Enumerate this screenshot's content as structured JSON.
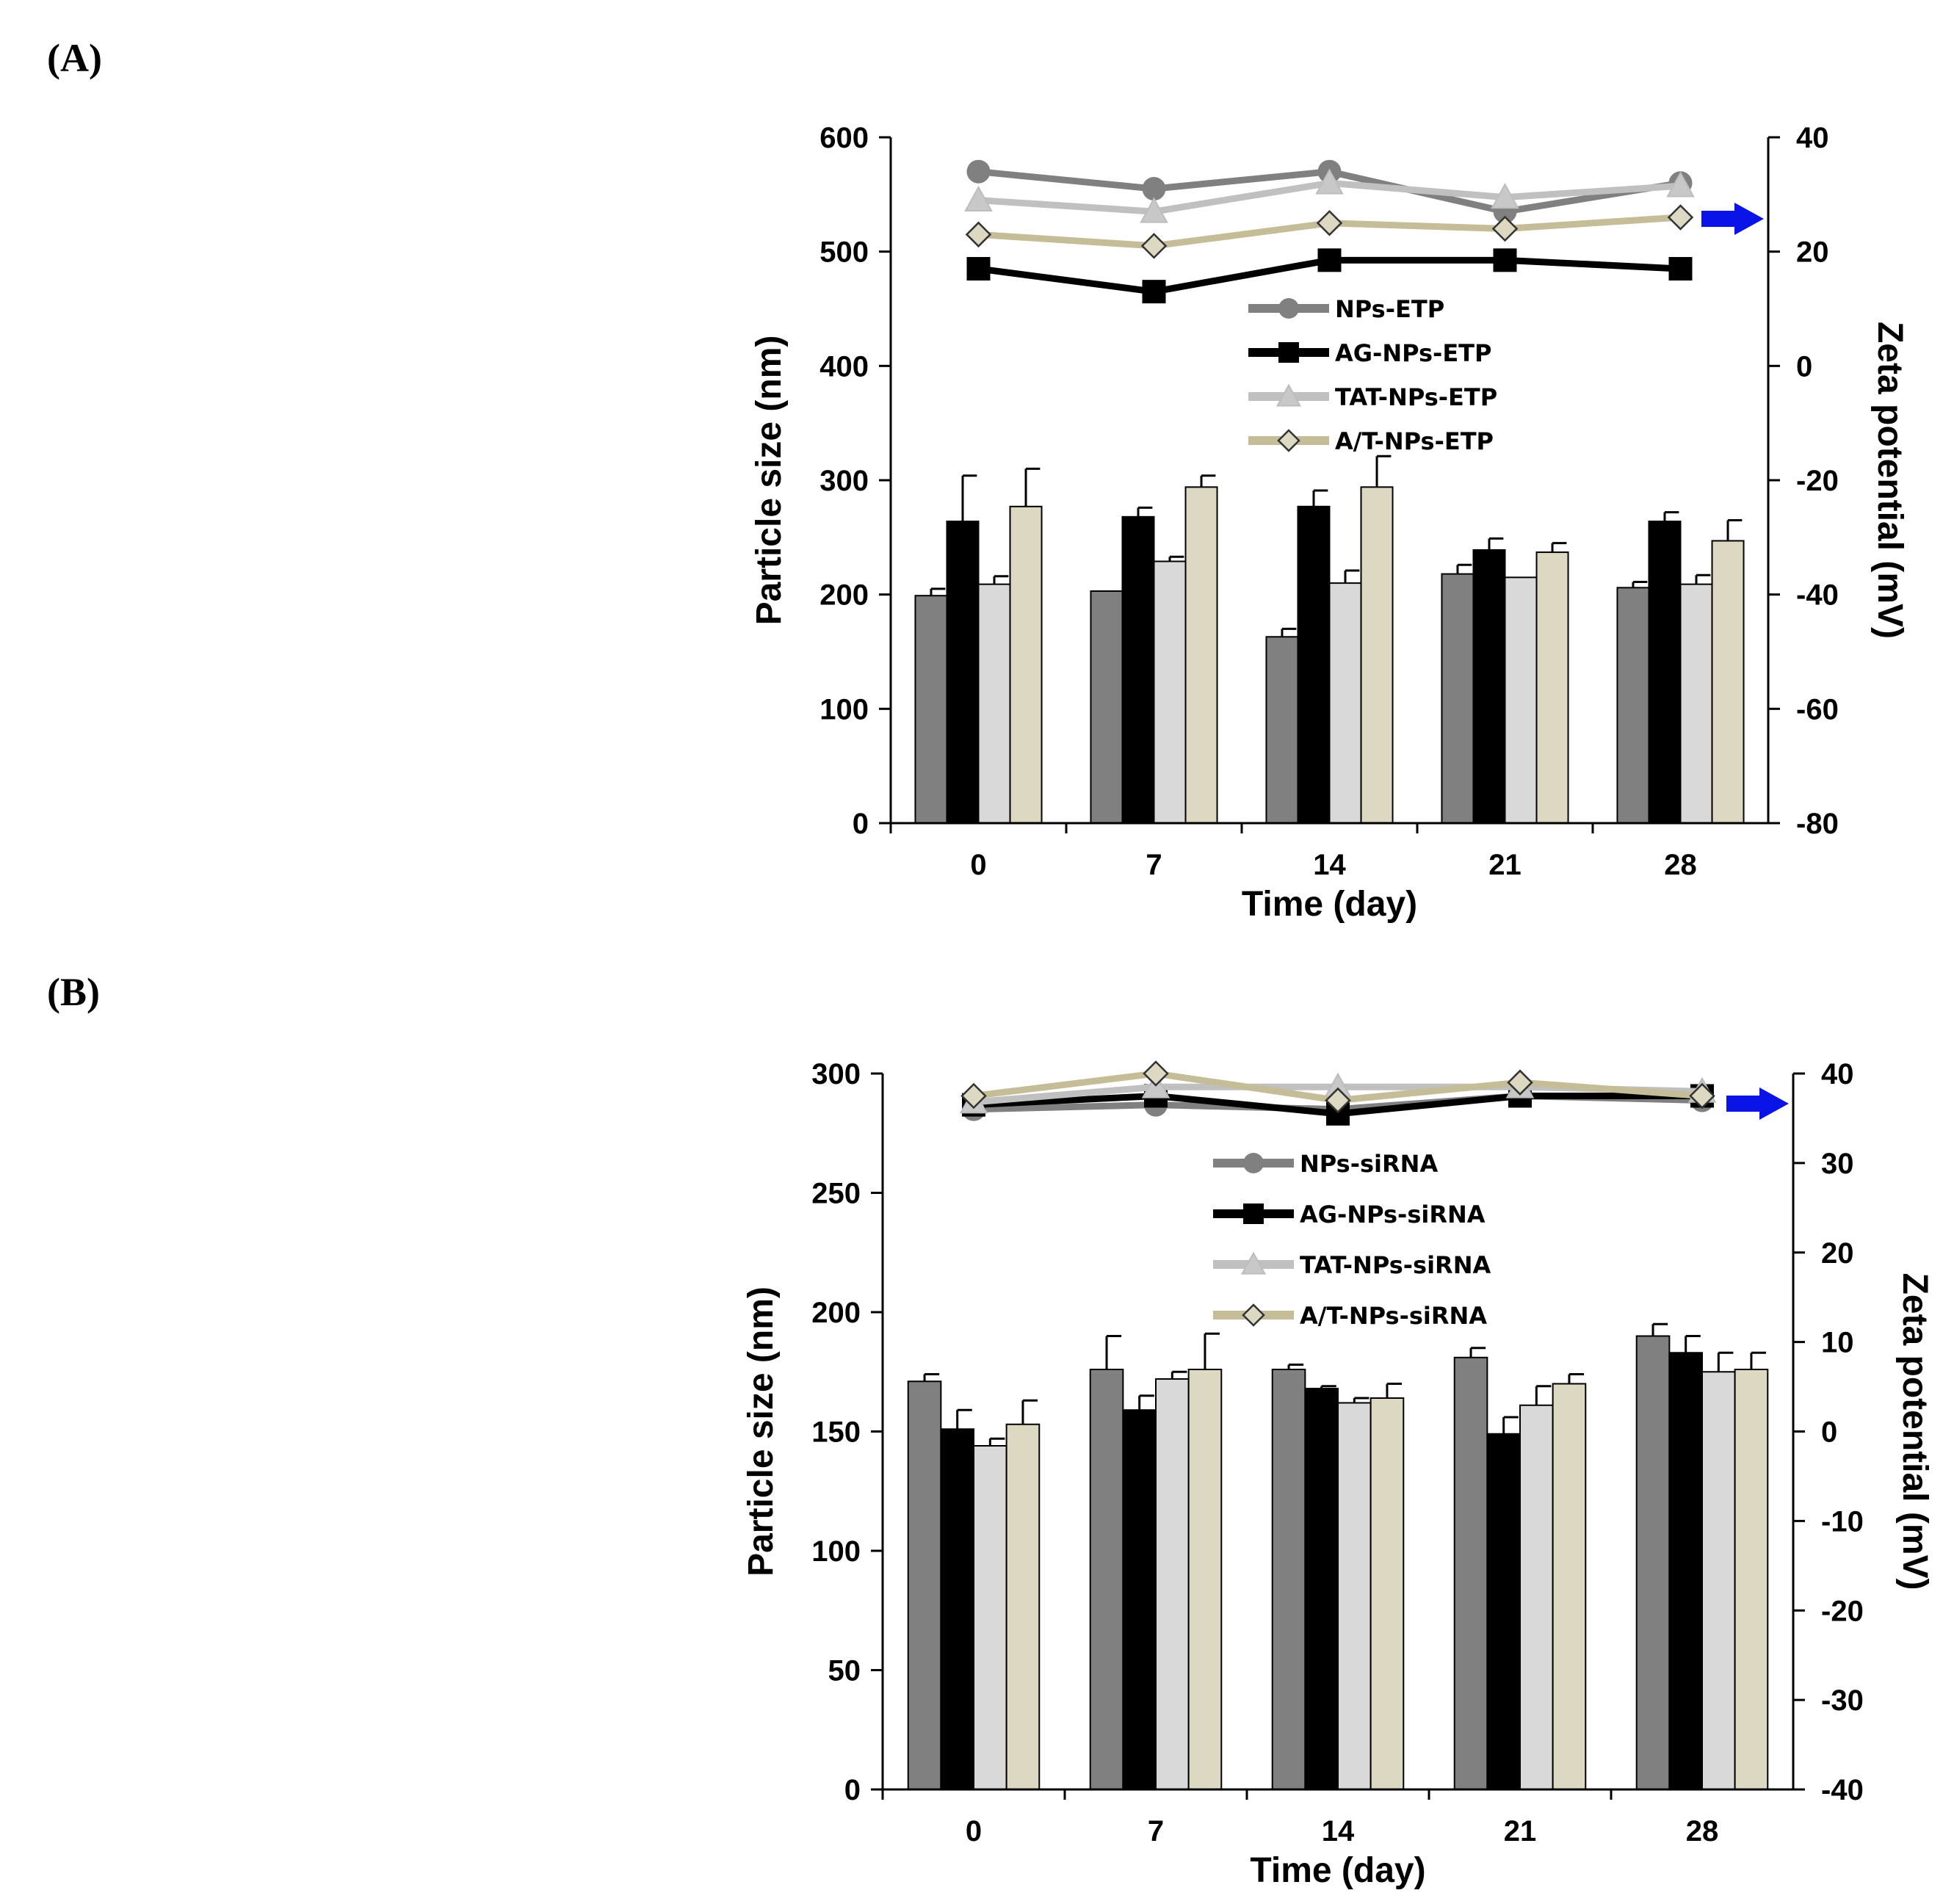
{
  "panels": {
    "a_label": "(A)",
    "b_label": "(B)"
  },
  "colors": {
    "NPs": "#808080",
    "AG": "#000000",
    "TAT": "#d9d9d9",
    "AT": "#ddd8c2",
    "TAT_line": "#c0c0c0",
    "AT_line": "#c4bd97",
    "arrow": "#0a14e6"
  },
  "chart_data": [
    {
      "type": "bar",
      "id": "A",
      "title": "",
      "xlabel": "Time (day)",
      "ylabel": "Particle size (nm)",
      "y2label": "Zeta potential (mV)",
      "categories": [
        "0",
        "7",
        "14",
        "21",
        "28"
      ],
      "ylim": [
        0,
        600
      ],
      "yticks": [
        0,
        100,
        200,
        300,
        400,
        500,
        600
      ],
      "y2lim": [
        -80,
        40
      ],
      "y2ticks": [
        -80,
        -60,
        -40,
        -20,
        0,
        20,
        40
      ],
      "series": [
        {
          "name": "NPs-ETP",
          "values": [
            199,
            203,
            163,
            218,
            206
          ],
          "errors": [
            6,
            0,
            7,
            8,
            5
          ],
          "zeta": [
            34,
            31,
            34,
            27,
            32
          ],
          "marker": "circle"
        },
        {
          "name": "AG-NPs-ETP",
          "values": [
            264,
            268,
            277,
            239,
            264
          ],
          "errors": [
            40,
            8,
            14,
            10,
            8
          ],
          "zeta": [
            17,
            13,
            18.5,
            18.5,
            17
          ],
          "marker": "square"
        },
        {
          "name": "TAT-NPs-ETP",
          "values": [
            209,
            229,
            210,
            215,
            209
          ],
          "errors": [
            7,
            4,
            11,
            0,
            8
          ],
          "zeta": [
            29,
            27,
            32,
            29.5,
            31.5
          ],
          "marker": "triangle"
        },
        {
          "name": "A/T-NPs-ETP",
          "values": [
            277,
            294,
            294,
            237,
            247
          ],
          "errors": [
            33,
            10,
            27,
            8,
            18
          ],
          "zeta": [
            23,
            21,
            25,
            24,
            26
          ],
          "marker": "diamond"
        }
      ],
      "legend_position": "upper-center"
    },
    {
      "type": "bar",
      "id": "B",
      "title": "",
      "xlabel": "Time (day)",
      "ylabel": "Particle size (nm)",
      "y2label": "Zeta potential (mV)",
      "categories": [
        "0",
        "7",
        "14",
        "21",
        "28"
      ],
      "ylim": [
        0,
        300
      ],
      "yticks": [
        0,
        50,
        100,
        150,
        200,
        250,
        300
      ],
      "y2lim": [
        -40,
        40
      ],
      "y2ticks": [
        -40,
        -30,
        -20,
        -10,
        0,
        10,
        20,
        30,
        40
      ],
      "series": [
        {
          "name": "NPs-siRNA",
          "values": [
            171,
            176,
            176,
            181,
            190
          ],
          "errors": [
            3,
            14,
            2,
            4,
            5
          ],
          "zeta": [
            36,
            36.5,
            36,
            37.5,
            37
          ],
          "marker": "circle"
        },
        {
          "name": "AG-NPs-siRNA",
          "values": [
            151,
            159,
            168,
            149,
            183
          ],
          "errors": [
            8,
            6,
            1,
            7,
            7
          ],
          "zeta": [
            36.5,
            37.5,
            35.5,
            37.5,
            37.5
          ],
          "marker": "square"
        },
        {
          "name": "TAT-NPs-siRNA",
          "values": [
            144,
            172,
            162,
            161,
            175
          ],
          "errors": [
            3,
            3,
            2,
            8,
            8
          ],
          "zeta": [
            36.8,
            38.5,
            38.5,
            38.5,
            38
          ],
          "marker": "triangle"
        },
        {
          "name": "A/T-NPs-siRNA",
          "values": [
            153,
            176,
            164,
            170,
            176
          ],
          "errors": [
            10,
            15,
            6,
            4,
            7
          ],
          "zeta": [
            37.5,
            40,
            37,
            39,
            37.5
          ],
          "marker": "diamond"
        }
      ],
      "legend_position": "upper-center"
    }
  ]
}
